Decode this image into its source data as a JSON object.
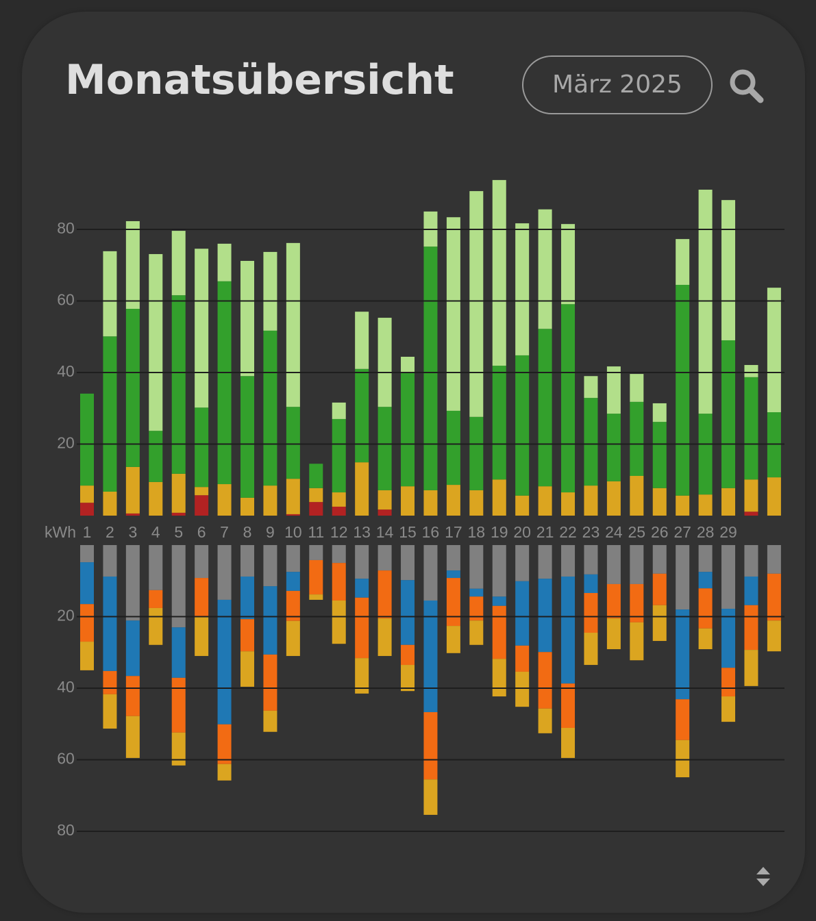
{
  "header": {
    "title": "Monatsübersicht",
    "month": "März 2025"
  },
  "chart_data": [
    {
      "type": "bar",
      "stacked": true,
      "xlabel": "kWh",
      "categories": [
        "1",
        "2",
        "3",
        "4",
        "5",
        "6",
        "7",
        "8",
        "9",
        "10",
        "11",
        "12",
        "13",
        "14",
        "15",
        "16",
        "17",
        "18",
        "19",
        "20",
        "21",
        "22",
        "23",
        "24",
        "25",
        "26",
        "27",
        "28",
        "29",
        null,
        null
      ],
      "ylim": [
        0,
        95
      ],
      "yticks": [
        20,
        40,
        60,
        80
      ],
      "grid": true,
      "inverted": false,
      "series": [
        {
          "color": "#b22222",
          "values": [
            3.6,
            0,
            0.6,
            0,
            0.8,
            5.7,
            0,
            0,
            0,
            0.4,
            3.8,
            2.5,
            0,
            1.7,
            0,
            0,
            0,
            0,
            0,
            0,
            0,
            0,
            0,
            0,
            0,
            0,
            0,
            0,
            0,
            1.1,
            0
          ]
        },
        {
          "color": "#dba520",
          "values": [
            4.8,
            6.7,
            13.0,
            9.4,
            10.9,
            2.3,
            8.8,
            5.0,
            8.4,
            9.9,
            3.9,
            4.0,
            14.9,
            5.4,
            8.2,
            7.1,
            8.6,
            7.1,
            10.1,
            5.6,
            8.2,
            6.5,
            8.4,
            9.6,
            11.1,
            7.7,
            5.6,
            5.9,
            7.7,
            9.0,
            10.7
          ]
        },
        {
          "color": "#33a02c",
          "values": [
            25.7,
            43.4,
            44.2,
            14.3,
            49.9,
            22.2,
            56.7,
            34.0,
            43.3,
            20.1,
            6.8,
            20.5,
            26.1,
            23.3,
            31.8,
            68.1,
            20.7,
            20.5,
            31.8,
            39.2,
            44.0,
            52.6,
            24.5,
            18.9,
            20.7,
            18.5,
            58.9,
            22.6,
            41.3,
            28.6,
            18.2
          ]
        },
        {
          "color": "#b2df8a",
          "values": [
            0,
            23.8,
            24.5,
            49.4,
            18.0,
            44.4,
            10.5,
            32.2,
            22.0,
            45.8,
            0,
            4.6,
            16.0,
            24.9,
            4.4,
            9.8,
            54.1,
            63.1,
            51.9,
            36.9,
            33.4,
            22.4,
            6.1,
            13.2,
            7.8,
            5.2,
            12.8,
            62.6,
            39.2,
            3.4,
            34.8
          ]
        }
      ]
    },
    {
      "type": "bar",
      "stacked": true,
      "ylim": [
        0,
        85
      ],
      "yticks": [
        20,
        40,
        60,
        80
      ],
      "grid": true,
      "inverted": true,
      "series": [
        {
          "color": "#808080",
          "values": [
            4.8,
            8.8,
            21.1,
            12.6,
            23.0,
            9.2,
            15.3,
            8.8,
            11.5,
            7.5,
            4.2,
            5.0,
            9.4,
            7.1,
            9.8,
            15.5,
            7.1,
            12.2,
            14.4,
            10.1,
            9.4,
            8.8,
            8.2,
            10.9,
            10.9,
            8.0,
            18.0,
            7.5,
            17.8,
            8.8,
            8.0
          ]
        },
        {
          "color": "#1f78b4",
          "values": [
            11.7,
            26.4,
            15.5,
            0,
            14.1,
            0,
            34.8,
            11.9,
            19.1,
            5.3,
            0,
            0,
            5.3,
            0,
            18.1,
            31.2,
            2.1,
            2.2,
            2.6,
            18.0,
            20.5,
            29.9,
            5.2,
            0,
            0,
            0,
            25.1,
            4.6,
            16.5,
            8.0,
            0
          ]
        },
        {
          "color": "#f26b13",
          "values": [
            10.5,
            6.5,
            11.2,
            5.0,
            15.3,
            10.7,
            11.1,
            9.0,
            15.7,
            8.4,
            9.6,
            10.5,
            16.9,
            13.4,
            5.6,
            18.8,
            13.4,
            6.7,
            14.8,
            7.3,
            15.8,
            12.4,
            11.1,
            9.6,
            10.7,
            8.8,
            11.4,
            11.2,
            8.0,
            12.5,
            13.1
          ]
        },
        {
          "color": "#dba520",
          "values": [
            8.0,
            9.6,
            11.7,
            10.3,
            9.2,
            11.1,
            4.6,
            9.9,
            5.9,
            9.8,
            1.5,
            12.1,
            9.9,
            10.5,
            7.3,
            9.9,
            7.6,
            6.8,
            10.5,
            9.8,
            6.9,
            8.4,
            9.0,
            8.6,
            10.6,
            10.0,
            10.4,
            5.8,
            7.1,
            10.1,
            8.6
          ]
        }
      ]
    }
  ]
}
